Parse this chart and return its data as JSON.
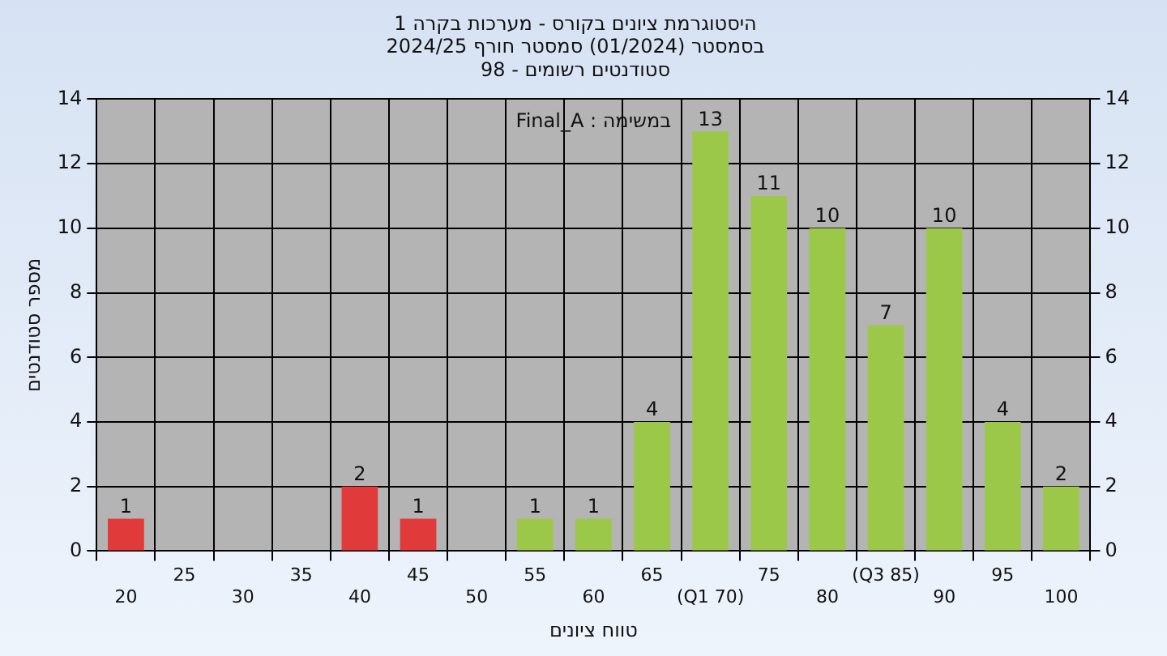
{
  "chart_data": {
    "type": "bar",
    "title": "היסטוגרמת ציונים בקורס - מערכות בקרה 1",
    "subtitle": "בסמסטר (01/2024) סמסטר חורף 2024/25\nסטודנטים רשומים - 98",
    "xlabel": "טווח ציונים",
    "ylabel": "מספר סטודנטים",
    "annotations": [
      "במשימה : Final_A"
    ],
    "categories": [
      "20",
      "25",
      "30",
      "35",
      "40",
      "45",
      "50",
      "55",
      "60",
      "65",
      "(Q1 70)",
      "75",
      "80",
      "(Q3 85)",
      "90",
      "95",
      "100"
    ],
    "values": [
      1,
      0,
      0,
      0,
      2,
      1,
      0,
      1,
      1,
      4,
      13,
      11,
      10,
      7,
      10,
      4,
      2
    ],
    "colors": [
      "#e03a3a",
      "#e03a3a",
      "#e03a3a",
      "#e03a3a",
      "#e03a3a",
      "#e03a3a",
      "#9cc84a",
      "#9cc84a",
      "#9cc84a",
      "#9cc84a",
      "#9cc84a",
      "#9cc84a",
      "#9cc84a",
      "#9cc84a",
      "#9cc84a",
      "#9cc84a",
      "#9cc84a"
    ],
    "value_labels": [
      "1",
      null,
      null,
      null,
      "2",
      "1",
      null,
      "1",
      "1",
      "4",
      "13",
      "11",
      "10",
      "7",
      "10",
      "4",
      "2"
    ],
    "ylim": [
      0,
      14
    ],
    "yticks": [
      0,
      2,
      4,
      6,
      8,
      10,
      12,
      14
    ],
    "y2lim": [
      0,
      14
    ],
    "y2ticks": [
      0,
      2,
      4,
      6,
      8,
      10,
      12,
      14
    ],
    "grid": true,
    "legend": false
  }
}
